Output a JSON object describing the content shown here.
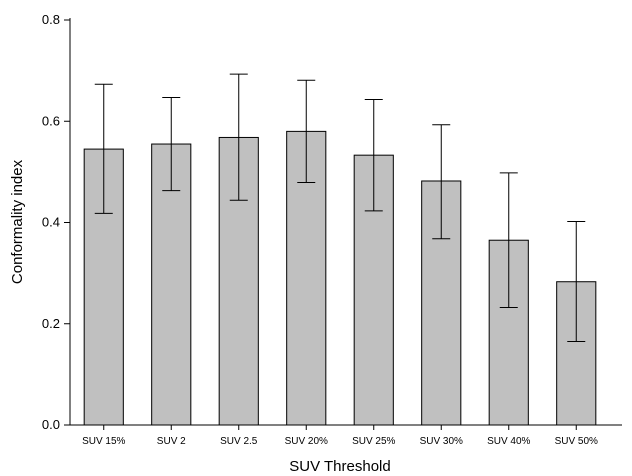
{
  "chart_data": {
    "type": "bar",
    "title": "",
    "xlabel": "SUV Threshold",
    "ylabel": "Conformality index",
    "ylim": [
      0.0,
      0.8
    ],
    "yticks": [
      "0.0",
      "0.2",
      "0.4",
      "0.6",
      "0.8"
    ],
    "grid": false,
    "categories": [
      "SUV 15%",
      "SUV 2",
      "SUV 2.5",
      "SUV 20%",
      "SUV 25%",
      "SUV 30%",
      "SUV 40%",
      "SUV 50%"
    ],
    "series": [
      {
        "values": [
          0.545,
          0.555,
          0.568,
          0.58,
          0.533,
          0.482,
          0.365,
          0.283
        ],
        "error_upper": [
          0.673,
          0.647,
          0.693,
          0.681,
          0.643,
          0.593,
          0.498,
          0.402
        ],
        "error_lower": [
          0.418,
          0.463,
          0.444,
          0.479,
          0.423,
          0.368,
          0.232,
          0.165
        ],
        "color": "#c0c0c0"
      }
    ]
  }
}
